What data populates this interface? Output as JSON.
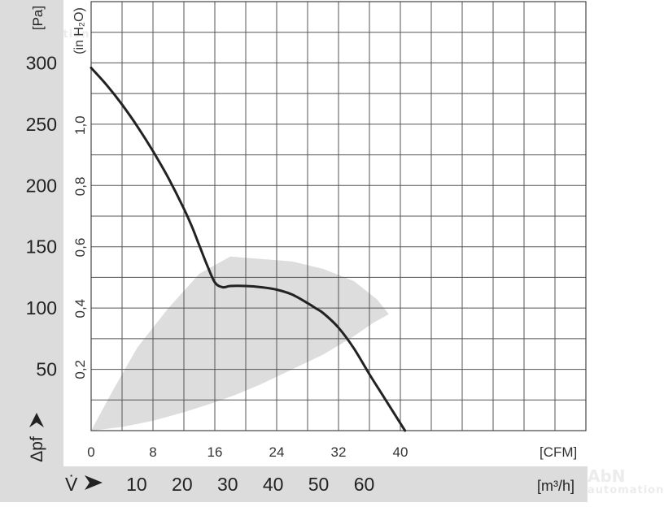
{
  "chart_data": {
    "type": "line",
    "title": "",
    "x": {
      "unit": "[CFM]",
      "ticks": [
        0,
        8,
        16,
        24,
        32,
        40
      ],
      "range": [
        0,
        64
      ]
    },
    "x2": {
      "symbol": "V̇",
      "unit": "[m³/h]",
      "ticks": [
        10,
        20,
        30,
        40,
        50,
        60
      ]
    },
    "y": {
      "symbol": "Δpf",
      "unit": "[Pa]",
      "ticks": [
        50,
        100,
        150,
        200,
        250,
        300
      ],
      "range": [
        0,
        350
      ]
    },
    "y2": {
      "unit": "(in H₂O)",
      "ticks": [
        "0,2",
        "0,4",
        "0,6",
        "0,8",
        "1,0"
      ]
    },
    "series": [
      {
        "color": "#222222",
        "x": [
          0,
          2,
          4,
          6,
          8,
          10,
          12,
          13,
          14,
          15,
          16,
          17,
          18,
          20,
          22,
          24,
          26,
          28,
          29,
          30,
          32,
          34,
          36,
          38,
          40,
          40.6
        ],
        "y": [
          296,
          282,
          266,
          248,
          228,
          206,
          181,
          167,
          151,
          135,
          121,
          117,
          118,
          118,
          117,
          115,
          111,
          104,
          100,
          96,
          84,
          67,
          46,
          26,
          6,
          0
        ]
      }
    ],
    "operating_range": {
      "color": "#dddddd",
      "x": [
        0,
        4,
        8,
        12,
        16,
        19,
        22,
        26,
        30,
        34,
        36.5,
        38.5,
        37,
        34,
        30,
        26,
        22,
        18,
        14,
        10,
        6,
        3,
        0
      ],
      "y": [
        0,
        3,
        8,
        15,
        23,
        30,
        38,
        50,
        62,
        77,
        88,
        95,
        107,
        122,
        132,
        138,
        140,
        142,
        128,
        100,
        68,
        35,
        0
      ]
    },
    "grid": true
  }
}
